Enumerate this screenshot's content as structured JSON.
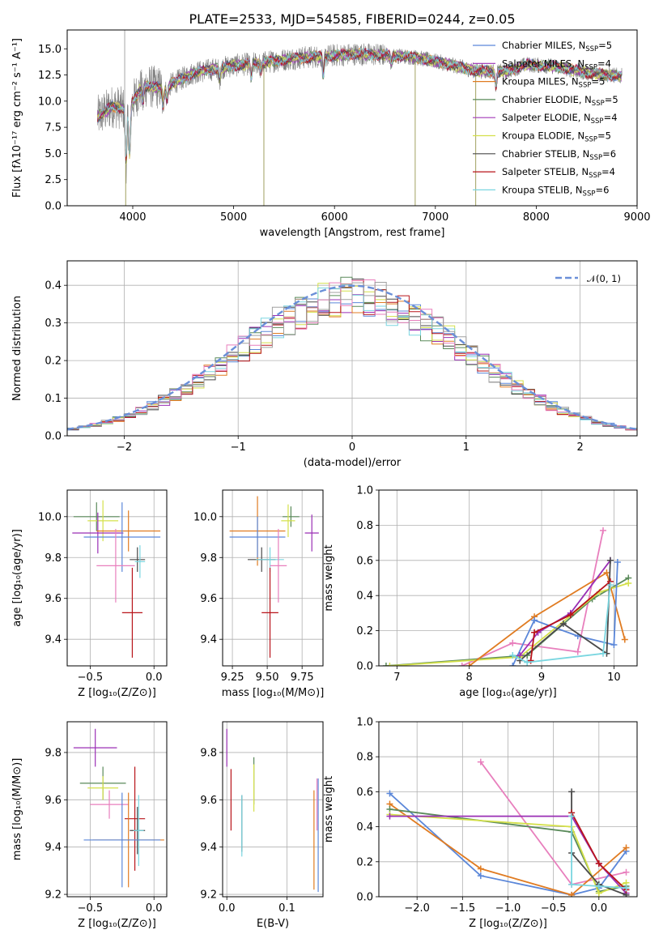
{
  "chart_data": [
    {
      "id": "spectrum",
      "type": "line",
      "title": "PLATE=2533, MJD=54585, FIBERID=0244, z=0.05",
      "xlabel": "wavelength [Angstrom, rest frame]",
      "ylabel": "Flux [fλ10⁻¹⁷ erg cm⁻² s⁻¹ A⁻¹]",
      "xlim": [
        3350,
        9000
      ],
      "ylim": [
        0,
        16.8
      ],
      "xticks": [
        "4000",
        "5000",
        "6000",
        "7000",
        "8000",
        "9000"
      ],
      "yticks": [
        "0.0",
        "2.5",
        "5.0",
        "7.5",
        "10.0",
        "12.5",
        "15.0"
      ],
      "legend_position": "top-right",
      "data_range": [
        3650,
        8850
      ],
      "continuum": [
        [
          3650,
          8.5
        ],
        [
          3800,
          9.5
        ],
        [
          3950,
          9.2
        ],
        [
          4100,
          11.5
        ],
        [
          4300,
          11.2
        ],
        [
          4600,
          12.7
        ],
        [
          5000,
          13.4
        ],
        [
          5300,
          13.7
        ],
        [
          5600,
          14.1
        ],
        [
          5900,
          14.3
        ],
        [
          6200,
          14.5
        ],
        [
          6500,
          14.4
        ],
        [
          6800,
          14.2
        ],
        [
          7100,
          13.6
        ],
        [
          7400,
          12.9
        ],
        [
          7700,
          12.8
        ],
        [
          7900,
          13.5
        ],
        [
          8200,
          13.3
        ],
        [
          8500,
          12.7
        ],
        [
          8850,
          12.4
        ]
      ],
      "series": [
        {
          "name": "Chabrier MILES, N",
          "sub": "SSP",
          "suffix": "=5",
          "color": "#5b87d9"
        },
        {
          "name": "Salpeter MILES, N",
          "sub": "SSP",
          "suffix": "=4",
          "color": "#9a2fb5"
        },
        {
          "name": "Kroupa MILES, N",
          "sub": "SSP",
          "suffix": "=5",
          "color": "#e07b21"
        },
        {
          "name": "Chabrier ELODIE, N",
          "sub": "SSP",
          "suffix": "=5",
          "color": "#5a8a5a"
        },
        {
          "name": "Salpeter ELODIE, N",
          "sub": "SSP",
          "suffix": "=4",
          "color": "#a33ab8"
        },
        {
          "name": "Kroupa ELODIE, N",
          "sub": "SSP",
          "suffix": "=5",
          "color": "#d4e04a"
        },
        {
          "name": "Chabrier STELIB, N",
          "sub": "SSP",
          "suffix": "=6",
          "color": "#4a4a4a"
        },
        {
          "name": "Salpeter STELIB, N",
          "sub": "SSP",
          "suffix": "=4",
          "color": "#b8141a"
        },
        {
          "name": "Kroupa STELIB, N",
          "sub": "SSP",
          "suffix": "=6",
          "color": "#7ad6e0"
        }
      ]
    },
    {
      "id": "residuals",
      "type": "histogram",
      "xlabel": "(data-model)/error",
      "ylabel": "Normed distribution",
      "xlim": [
        -2.5,
        2.5
      ],
      "ylim": [
        0,
        0.465
      ],
      "xticks": [
        "−2",
        "−1",
        "0",
        "1",
        "2"
      ],
      "yticks": [
        "0.0",
        "0.1",
        "0.2",
        "0.3",
        "0.4"
      ],
      "legend": "𝒩(0, 1)",
      "legend_position": "top-right",
      "bin_width": 0.1,
      "hist_colors": [
        "#5b87d9",
        "#9a2fb5",
        "#e07b21",
        "#5a8a5a",
        "#d4e04a",
        "#4a4a4a",
        "#b8141a",
        "#7ad6e0",
        "#e87fbd",
        "#a0a0a0"
      ]
    },
    {
      "id": "age-vs-Z",
      "type": "errorbar",
      "xlabel": "Z [log₁₀(Z/Z⊙)]",
      "ylabel": "age  [log₁₀(age/yr)]",
      "xlim": [
        -0.68,
        0.1
      ],
      "ylim": [
        9.27,
        10.13
      ],
      "xticks": [
        "−0.5",
        "0.0"
      ],
      "yticks": [
        "9.4",
        "9.6",
        "9.8",
        "10.0"
      ],
      "points": [
        {
          "x": -0.45,
          "y": 10.0,
          "xerr": 0.18,
          "yerr": 0.07,
          "color": "#5a8a5a"
        },
        {
          "x": -0.4,
          "y": 9.98,
          "xerr": 0.12,
          "yerr": 0.1,
          "color": "#d4e04a"
        },
        {
          "x": -0.44,
          "y": 9.92,
          "xerr": 0.2,
          "yerr": 0.1,
          "color": "#9a2fb5"
        },
        {
          "x": -0.2,
          "y": 9.93,
          "xerr": 0.25,
          "yerr": 0.1,
          "color": "#e07b21"
        },
        {
          "x": -0.25,
          "y": 9.9,
          "xerr": 0.3,
          "yerr": 0.17,
          "color": "#5b87d9"
        },
        {
          "x": -0.13,
          "y": 9.79,
          "xerr": 0.06,
          "yerr": 0.06,
          "color": "#4a4a4a"
        },
        {
          "x": -0.11,
          "y": 9.78,
          "xerr": 0.04,
          "yerr": 0.08,
          "color": "#7ad6e0"
        },
        {
          "x": -0.3,
          "y": 9.76,
          "xerr": 0.15,
          "yerr": 0.18,
          "color": "#e87fbd"
        },
        {
          "x": -0.17,
          "y": 9.53,
          "xerr": 0.08,
          "yerr": 0.22,
          "color": "#b8141a"
        }
      ]
    },
    {
      "id": "age-vs-mass",
      "type": "errorbar",
      "xlabel": "mass [log₁₀(M/M⊙)]",
      "ylabel": "",
      "xlim": [
        9.18,
        9.9
      ],
      "ylim": [
        9.27,
        10.13
      ],
      "xticks": [
        "9.25",
        "9.50",
        "9.75"
      ],
      "yticks": [
        "9.4",
        "9.6",
        "9.8",
        "10.0"
      ],
      "points": [
        {
          "x": 9.67,
          "y": 10.0,
          "xerr": 0.06,
          "yerr": 0.05,
          "color": "#5a8a5a"
        },
        {
          "x": 9.65,
          "y": 9.98,
          "xerr": 0.05,
          "yerr": 0.08,
          "color": "#d4e04a"
        },
        {
          "x": 9.82,
          "y": 9.92,
          "xerr": 0.05,
          "yerr": 0.09,
          "color": "#9a2fb5"
        },
        {
          "x": 9.43,
          "y": 9.93,
          "xerr": 0.2,
          "yerr": 0.17,
          "color": "#e07b21"
        },
        {
          "x": 9.43,
          "y": 9.9,
          "xerr": 0.2,
          "yerr": 0.1,
          "color": "#5b87d9"
        },
        {
          "x": 9.46,
          "y": 9.79,
          "xerr": 0.1,
          "yerr": 0.06,
          "color": "#4a4a4a"
        },
        {
          "x": 9.52,
          "y": 9.79,
          "xerr": 0.1,
          "yerr": 0.06,
          "color": "#7ad6e0"
        },
        {
          "x": 9.58,
          "y": 9.76,
          "xerr": 0.06,
          "yerr": 0.18,
          "color": "#e87fbd"
        },
        {
          "x": 9.52,
          "y": 9.53,
          "xerr": 0.06,
          "yerr": 0.22,
          "color": "#b8141a"
        }
      ]
    },
    {
      "id": "weight-vs-age",
      "type": "line",
      "xlabel": "age  [log₁₀(age/yr)]",
      "ylabel": "mass weight",
      "xlim": [
        6.75,
        10.32
      ],
      "ylim": [
        0,
        1
      ],
      "xticks": [
        "7",
        "8",
        "9",
        "10"
      ],
      "yticks": [
        "0.0",
        "0.2",
        "0.4",
        "0.6",
        "0.8",
        "1.0"
      ],
      "series": [
        {
          "color": "#e87fbd",
          "points": [
            [
              7.9,
              0.0
            ],
            [
              8.6,
              0.13
            ],
            [
              9.5,
              0.08
            ],
            [
              9.85,
              0.77
            ]
          ]
        },
        {
          "color": "#5a8a5a",
          "points": [
            [
              6.85,
              0.0
            ],
            [
              8.8,
              0.06
            ],
            [
              9.7,
              0.38
            ],
            [
              10.2,
              0.5
            ]
          ]
        },
        {
          "color": "#d4e04a",
          "points": [
            [
              6.9,
              0.0
            ],
            [
              8.7,
              0.05
            ],
            [
              9.8,
              0.42
            ],
            [
              10.2,
              0.47
            ]
          ]
        },
        {
          "color": "#e07b21",
          "points": [
            [
              8.0,
              0.0
            ],
            [
              8.9,
              0.28
            ],
            [
              9.9,
              0.53
            ],
            [
              10.15,
              0.15
            ]
          ]
        },
        {
          "color": "#5b87d9",
          "points": [
            [
              8.6,
              0.0
            ],
            [
              8.9,
              0.26
            ],
            [
              9.5,
              0.17
            ],
            [
              10.0,
              0.12
            ],
            [
              10.05,
              0.59
            ]
          ]
        },
        {
          "color": "#9a2fb5",
          "points": [
            [
              8.7,
              0.06
            ],
            [
              8.95,
              0.19
            ],
            [
              9.4,
              0.3
            ],
            [
              9.95,
              0.6
            ]
          ]
        },
        {
          "color": "#4a4a4a",
          "points": [
            [
              8.7,
              0.03
            ],
            [
              9.3,
              0.24
            ],
            [
              9.9,
              0.07
            ],
            [
              9.95,
              0.6
            ]
          ]
        },
        {
          "color": "#b8141a",
          "points": [
            [
              8.85,
              0.03
            ],
            [
              8.9,
              0.19
            ],
            [
              9.4,
              0.29
            ],
            [
              9.95,
              0.48
            ]
          ]
        },
        {
          "color": "#7ad6e0",
          "points": [
            [
              8.6,
              0.06
            ],
            [
              8.8,
              0.02
            ],
            [
              9.85,
              0.07
            ],
            [
              9.95,
              0.46
            ]
          ]
        }
      ]
    },
    {
      "id": "mass-vs-Z",
      "type": "errorbar",
      "xlabel": "Z [log₁₀(Z/Z⊙)]",
      "ylabel": "mass [log₁₀(M/M⊙)]",
      "xlim": [
        -0.68,
        0.1
      ],
      "ylim": [
        9.19,
        9.93
      ],
      "xticks": [
        "−0.5",
        "0.0"
      ],
      "yticks": [
        "9.2",
        "9.4",
        "9.6",
        "9.8"
      ],
      "points": [
        {
          "x": -0.46,
          "y": 9.82,
          "xerr": 0.17,
          "yerr": 0.08,
          "color": "#9a2fb5"
        },
        {
          "x": -0.4,
          "y": 9.67,
          "xerr": 0.18,
          "yerr": 0.07,
          "color": "#5a8a5a"
        },
        {
          "x": -0.4,
          "y": 9.65,
          "xerr": 0.12,
          "yerr": 0.05,
          "color": "#d4e04a"
        },
        {
          "x": -0.35,
          "y": 9.58,
          "xerr": 0.15,
          "yerr": 0.06,
          "color": "#e87fbd"
        },
        {
          "x": -0.15,
          "y": 9.52,
          "xerr": 0.08,
          "yerr": 0.22,
          "color": "#b8141a"
        },
        {
          "x": -0.13,
          "y": 9.47,
          "xerr": 0.06,
          "yerr": 0.1,
          "color": "#4a4a4a"
        },
        {
          "x": -0.12,
          "y": 9.47,
          "xerr": 0.04,
          "yerr": 0.15,
          "color": "#7ad6e0"
        },
        {
          "x": -0.2,
          "y": 9.43,
          "xerr": 0.28,
          "yerr": 0.2,
          "color": "#e07b21"
        },
        {
          "x": -0.25,
          "y": 9.43,
          "xerr": 0.3,
          "yerr": 0.2,
          "color": "#5b87d9"
        }
      ]
    },
    {
      "id": "mass-vs-EBV",
      "type": "errorbar",
      "xlabel": "E(B-V)",
      "ylabel": "",
      "xlim": [
        -0.007,
        0.16
      ],
      "ylim": [
        9.19,
        9.93
      ],
      "xticks": [
        "0.0",
        "0.1"
      ],
      "yticks": [
        "9.2",
        "9.4",
        "9.6",
        "9.8"
      ],
      "points": [
        {
          "x": 0.0,
          "y": 9.82,
          "yerr": 0.08,
          "color": "#9a2fb5"
        },
        {
          "x": 0.007,
          "y": 9.6,
          "yerr": 0.13,
          "color": "#b8141a"
        },
        {
          "x": 0.025,
          "y": 9.5,
          "yerr": 0.12,
          "color": "#4a4a4a"
        },
        {
          "x": 0.025,
          "y": 9.49,
          "yerr": 0.13,
          "color": "#7ad6e0"
        },
        {
          "x": 0.045,
          "y": 9.68,
          "yerr": 0.1,
          "color": "#5a8a5a"
        },
        {
          "x": 0.045,
          "y": 9.65,
          "yerr": 0.1,
          "color": "#d4e04a"
        },
        {
          "x": 0.145,
          "y": 9.43,
          "yerr": 0.21,
          "color": "#e07b21"
        },
        {
          "x": 0.15,
          "y": 9.58,
          "yerr": 0.11,
          "color": "#e87fbd"
        },
        {
          "x": 0.152,
          "y": 9.45,
          "yerr": 0.24,
          "color": "#5b87d9"
        }
      ]
    },
    {
      "id": "weight-vs-Z",
      "type": "line",
      "xlabel": "Z [log₁₀(Z/Z⊙)]",
      "ylabel": "mass weight",
      "xlim": [
        -2.42,
        0.42
      ],
      "ylim": [
        0,
        1
      ],
      "xticks": [
        "−2.0",
        "−1.5",
        "−1.0",
        "−0.5",
        "0.0"
      ],
      "yticks": [
        "0.0",
        "0.2",
        "0.4",
        "0.6",
        "0.8",
        "1.0"
      ],
      "series": [
        {
          "color": "#e87fbd",
          "points": [
            [
              -1.3,
              0.77
            ],
            [
              -0.3,
              0.07
            ],
            [
              0.3,
              0.14
            ]
          ]
        },
        {
          "color": "#5b87d9",
          "points": [
            [
              -2.3,
              0.59
            ],
            [
              -1.3,
              0.12
            ],
            [
              -0.3,
              0.01
            ],
            [
              0.0,
              0.05
            ],
            [
              0.3,
              0.26
            ]
          ]
        },
        {
          "color": "#e07b21",
          "points": [
            [
              -2.3,
              0.53
            ],
            [
              -1.3,
              0.16
            ],
            [
              -0.3,
              0.01
            ],
            [
              0.3,
              0.28
            ]
          ]
        },
        {
          "color": "#5a8a5a",
          "points": [
            [
              -2.3,
              0.5
            ],
            [
              -0.3,
              0.37
            ],
            [
              0.0,
              0.03
            ],
            [
              0.3,
              0.06
            ]
          ]
        },
        {
          "color": "#d4e04a",
          "points": [
            [
              -2.3,
              0.47
            ],
            [
              -0.3,
              0.4
            ],
            [
              0.0,
              0.02
            ],
            [
              0.3,
              0.08
            ]
          ]
        },
        {
          "color": "#9a2fb5",
          "points": [
            [
              -2.3,
              0.46
            ],
            [
              -0.3,
              0.46
            ],
            [
              0.0,
              0.19
            ],
            [
              0.3,
              0.02
            ]
          ]
        },
        {
          "color": "#4a4a4a",
          "points": [
            [
              -0.3,
              0.6
            ],
            [
              -0.3,
              0.25
            ],
            [
              0.0,
              0.07
            ],
            [
              0.3,
              0.01
            ]
          ]
        },
        {
          "color": "#b8141a",
          "points": [
            [
              -0.3,
              0.48
            ],
            [
              0.0,
              0.19
            ],
            [
              0.3,
              0.04
            ]
          ]
        },
        {
          "color": "#7ad6e0",
          "points": [
            [
              -0.3,
              0.46
            ],
            [
              -0.3,
              0.07
            ],
            [
              0.0,
              0.06
            ],
            [
              0.3,
              0.05
            ]
          ]
        }
      ]
    }
  ]
}
